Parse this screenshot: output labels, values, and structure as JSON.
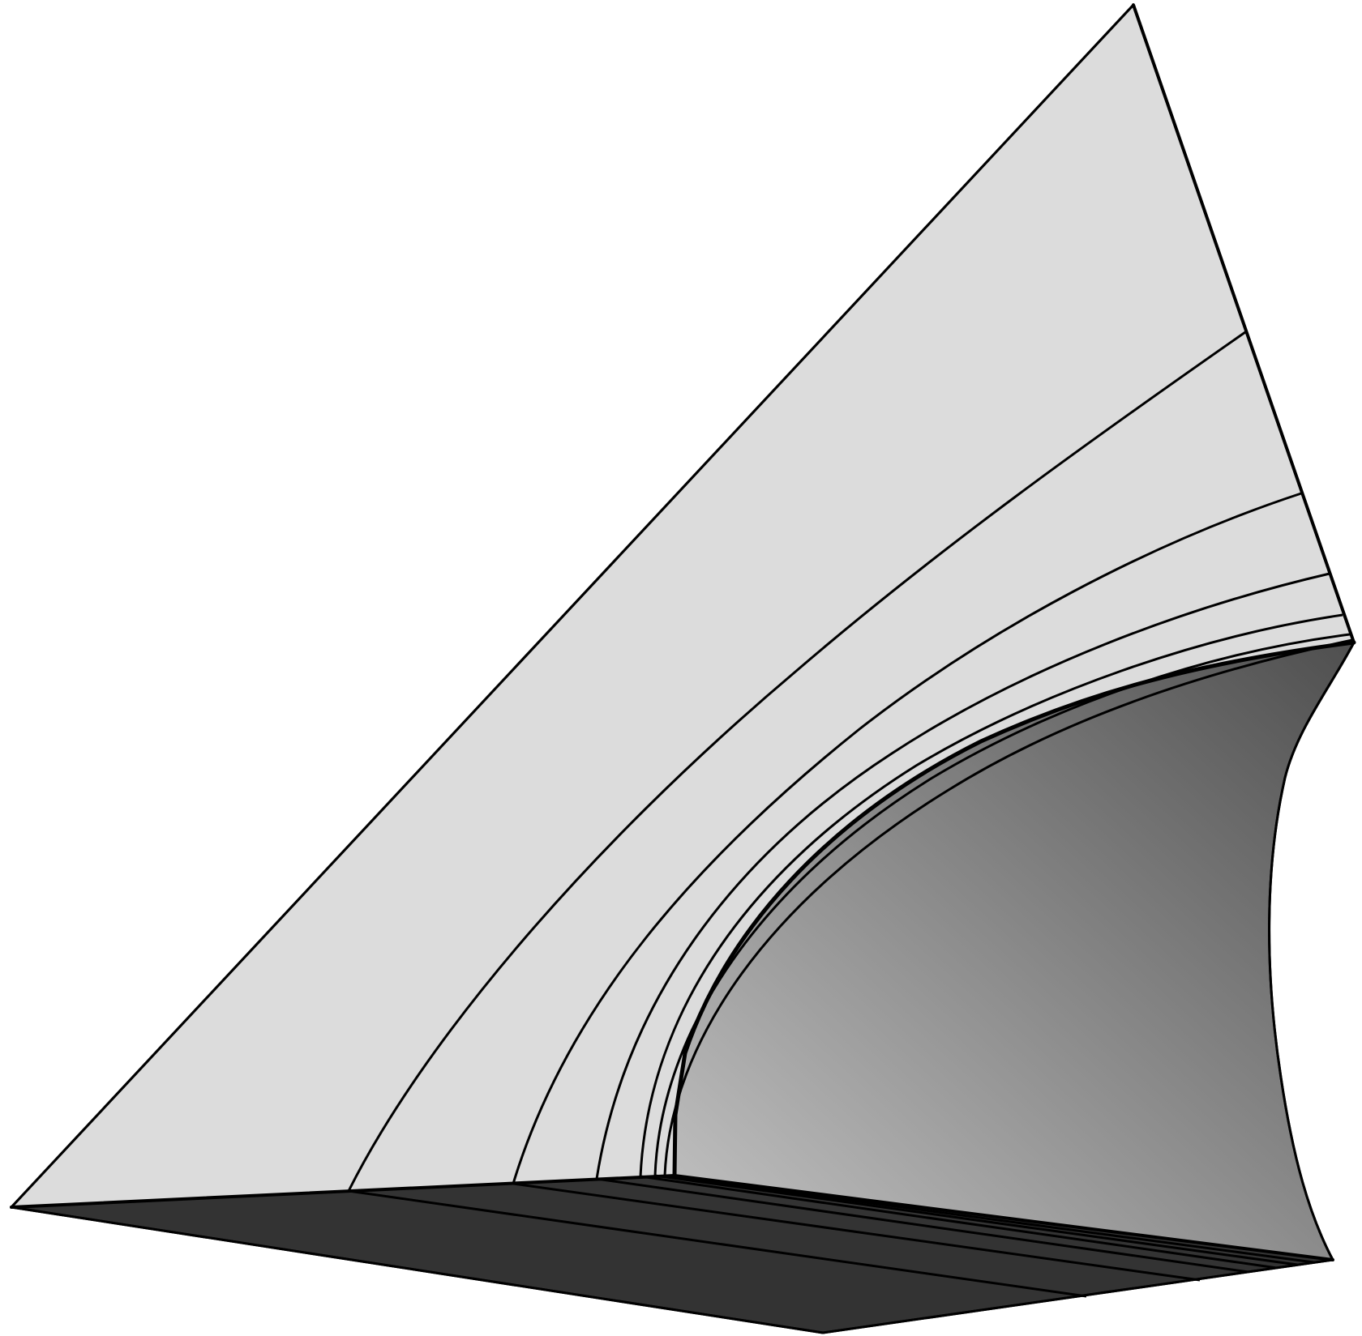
{
  "figure": {
    "kind": "3d-wedge-solid-with-curved-layers",
    "colors": {
      "background": "#ffffff",
      "front_face": "#dcdcdc",
      "bottom_face": "#333333",
      "curved_face_dark": "#4f4f4f",
      "curved_face_light": "#c4c4c4",
      "edge": "#000000"
    },
    "layer_line_count": 8
  }
}
